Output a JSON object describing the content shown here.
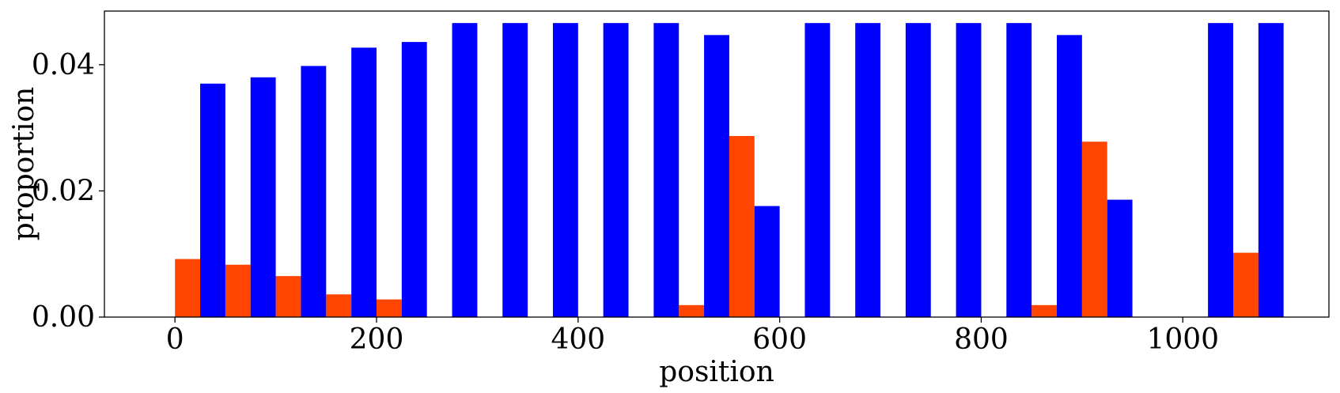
{
  "chart_data": {
    "type": "bar",
    "xlabel": "position",
    "ylabel": "proportion",
    "xlim": [
      -70,
      1145
    ],
    "ylim": [
      0,
      0.0485
    ],
    "bin_width": 50,
    "grid": false,
    "legend": "none",
    "x_ticks": [
      {
        "value": 0,
        "label": "0"
      },
      {
        "value": 200,
        "label": "200"
      },
      {
        "value": 400,
        "label": "400"
      },
      {
        "value": 600,
        "label": "600"
      },
      {
        "value": 800,
        "label": "800"
      },
      {
        "value": 1000,
        "label": "1000"
      }
    ],
    "y_ticks": [
      {
        "value": 0.0,
        "label": "0.00"
      },
      {
        "value": 0.02,
        "label": "0.02"
      },
      {
        "value": 0.04,
        "label": "0.04"
      }
    ],
    "bin_starts": [
      0,
      50,
      100,
      150,
      200,
      250,
      300,
      350,
      400,
      450,
      500,
      550,
      600,
      650,
      700,
      750,
      800,
      850,
      900,
      950,
      1000,
      1050
    ],
    "series": [
      {
        "color": "#ff4500",
        "values": [
          0.0092,
          0.0083,
          0.0065,
          0.0036,
          0.0028,
          0,
          0,
          0,
          0,
          0,
          0.0019,
          0.0287,
          0,
          0,
          0,
          0,
          0,
          0.0019,
          0.0278,
          0,
          0,
          0.0102
        ]
      },
      {
        "color": "#0000ff",
        "values": [
          0.037,
          0.038,
          0.0398,
          0.0427,
          0.0436,
          0.0466,
          0.0466,
          0.0466,
          0.0466,
          0.0466,
          0.0447,
          0.0176,
          0.0466,
          0.0466,
          0.0466,
          0.0466,
          0.0466,
          0.0447,
          0.0186,
          0,
          0.0466,
          0.0466
        ]
      }
    ]
  }
}
